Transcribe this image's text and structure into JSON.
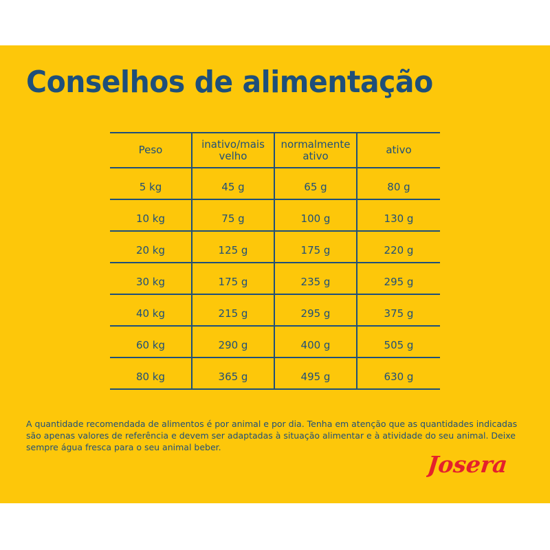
{
  "title": "Conselhos de alimentação",
  "table": {
    "headers": [
      "Peso",
      "inativo/mais velho",
      "normalmente ativo",
      "ativo"
    ],
    "rows": [
      [
        "5 kg",
        "45 g",
        "65 g",
        "80 g"
      ],
      [
        "10 kg",
        "75 g",
        "100 g",
        "130 g"
      ],
      [
        "20 kg",
        "125 g",
        "175 g",
        "220 g"
      ],
      [
        "30 kg",
        "175 g",
        "235 g",
        "295 g"
      ],
      [
        "40 kg",
        "215 g",
        "295 g",
        "375 g"
      ],
      [
        "60 kg",
        "290 g",
        "400 g",
        "505 g"
      ],
      [
        "80 kg",
        "365 g",
        "495 g",
        "630 g"
      ]
    ]
  },
  "note": "A quantidade recomendada de alimentos é por animal e por dia. Tenha em atenção que as quantidades indicadas são apenas valores de referência e devem ser adaptadas à situação alimentar e à atividade do seu animal. Deixe sempre água fresca para o seu animal beber.",
  "logo": {
    "text": "Josera",
    "color": "#e4212c"
  },
  "colors": {
    "background": "#fdc70a",
    "text": "#1e4f7a",
    "page": "#ffffff"
  }
}
